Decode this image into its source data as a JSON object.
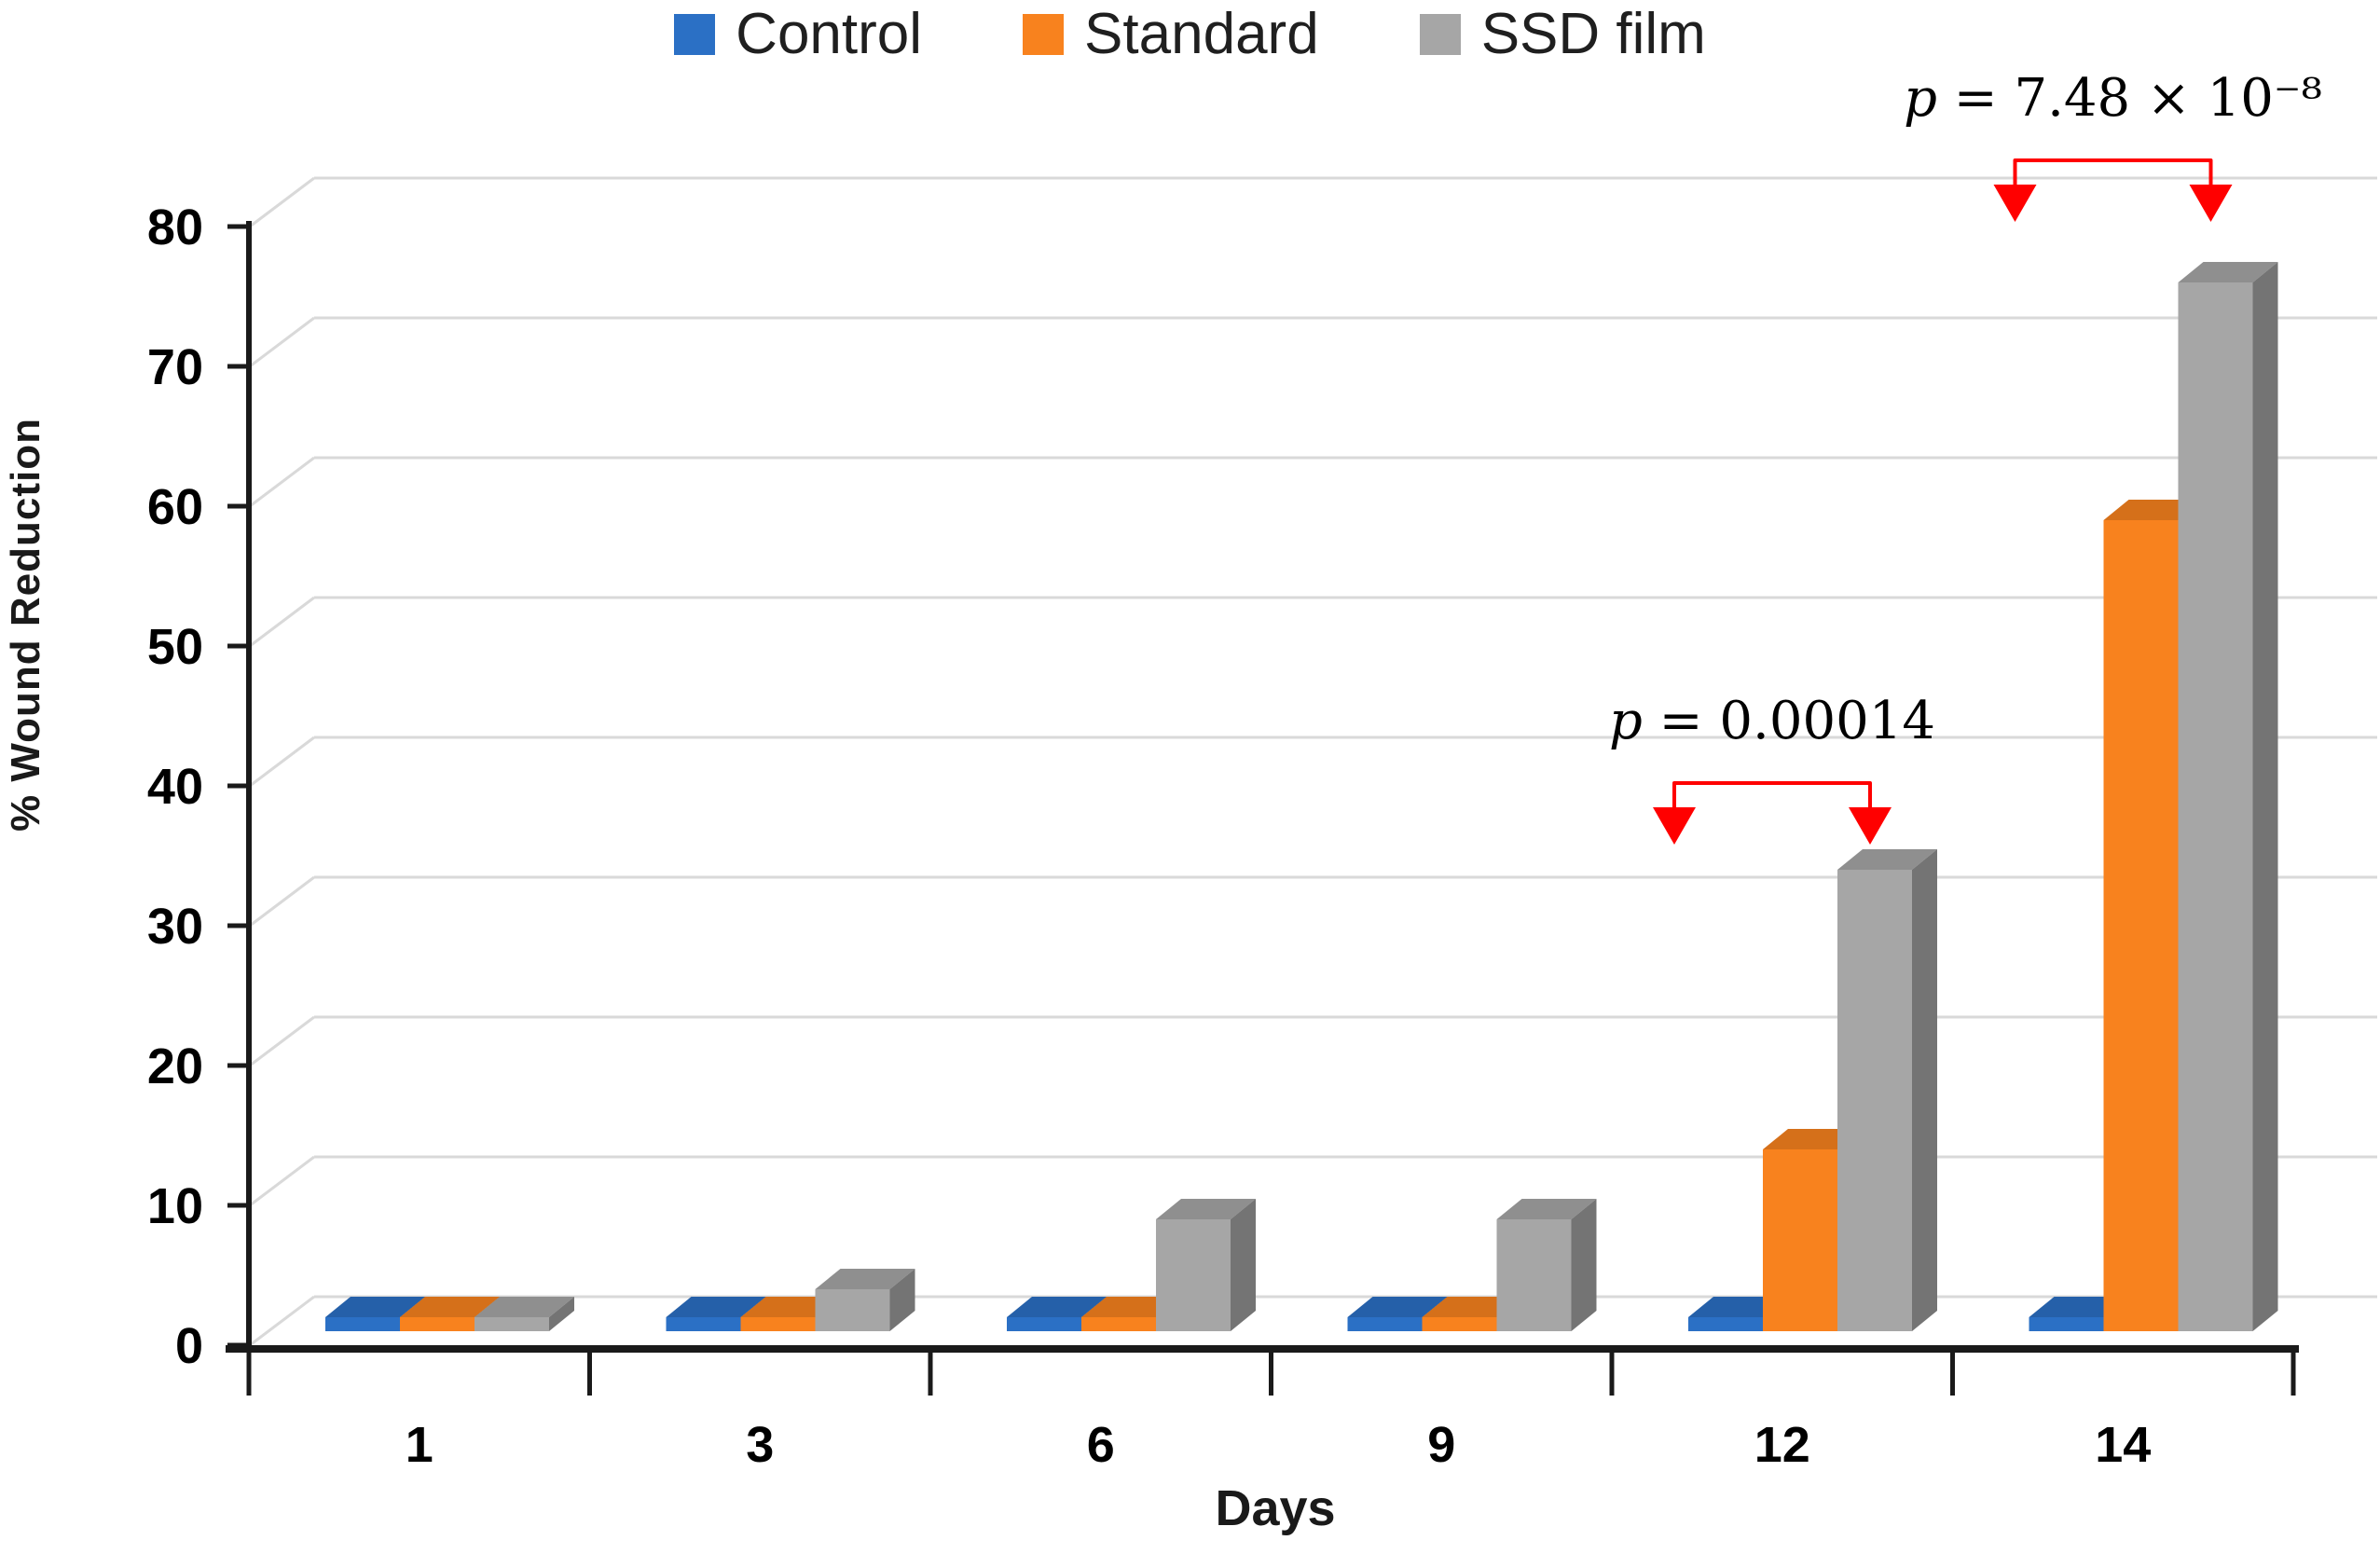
{
  "chart_data": {
    "type": "bar",
    "variant": "3d-column",
    "title": "",
    "xlabel": "Days",
    "ylabel": "% Wound Reduction",
    "categories": [
      "1",
      "3",
      "6",
      "9",
      "12",
      "14"
    ],
    "series": [
      {
        "name": "Control",
        "color": "#2B70C5",
        "values": [
          1,
          1,
          1,
          1,
          1,
          1
        ]
      },
      {
        "name": "Standard",
        "color": "#F8821E",
        "values": [
          1,
          1,
          1,
          1,
          13,
          58
        ]
      },
      {
        "name": "SSD film",
        "color": "#A6A6A6",
        "values": [
          1,
          3,
          8,
          8,
          33,
          75
        ]
      }
    ],
    "ylim": [
      0,
      80
    ],
    "ytick_step": 10,
    "ytick_labels": [
      "0",
      "10",
      "20",
      "30",
      "40",
      "50",
      "60",
      "70",
      "80"
    ],
    "grid": "horizontal-back-wall",
    "legend_position": "top-center",
    "axis_color": "#1a1a1a",
    "grid_color": "#d9d9d9",
    "annotation_color": "#ff0000",
    "annotations": [
      {
        "text": "p = 0.00014",
        "category": "12",
        "between": [
          "Control",
          "SSD film"
        ]
      },
      {
        "text": "p = 7.48 × 10⁻⁸",
        "category": "14",
        "between": [
          "Control",
          "SSD film"
        ]
      }
    ]
  }
}
